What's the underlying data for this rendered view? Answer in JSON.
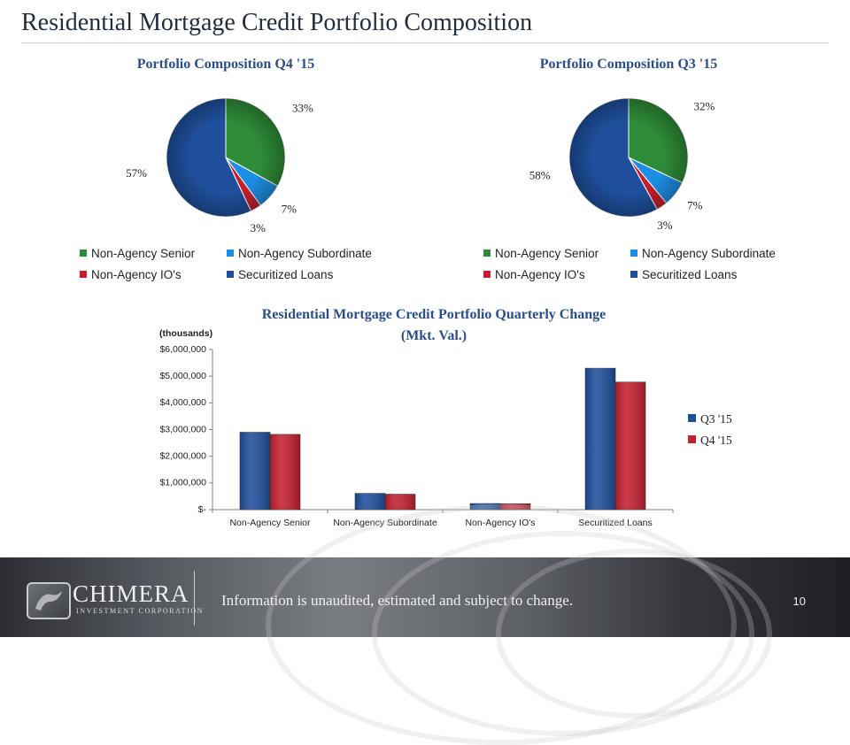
{
  "page": {
    "title": "Residential Mortgage Credit Portfolio Composition",
    "footer_text": "Information is unaudited, estimated and subject to change.",
    "page_number": "10",
    "logo_name": "CHIMERA",
    "logo_subtitle": "INVESTMENT CORPORATION"
  },
  "colors": {
    "Non-Agency Senior": "#2e8b38",
    "Non-Agency Subordinate": "#1c8ee3",
    "Non-Agency IO's": "#c4202e",
    "Securitized  Loans": "#1f4f9c",
    "Q3 '15": "#1f4f9c",
    "Q4 '15": "#c4202e"
  },
  "chart_data": [
    {
      "type": "pie",
      "title": "Portfolio Composition Q4 '15",
      "labels": [
        "Non-Agency Senior",
        "Non-Agency Subordinate",
        "Non-Agency IO's",
        "Securitized  Loans"
      ],
      "values": [
        33,
        7,
        3,
        57
      ],
      "value_labels": [
        "33%",
        "7%",
        "3%",
        "57%"
      ],
      "legend": "bottom"
    },
    {
      "type": "pie",
      "title": "Portfolio Composition Q3 '15",
      "labels": [
        "Non-Agency Senior",
        "Non-Agency Subordinate",
        "Non-Agency IO's",
        "Securitized  Loans"
      ],
      "values": [
        32,
        7,
        3,
        58
      ],
      "value_labels": [
        "32%",
        "7%",
        "3%",
        "58%"
      ],
      "legend": "bottom"
    },
    {
      "type": "bar",
      "title_lines": [
        "Residential Mortgage Credit Portfolio Quarterly Change",
        "(Mkt. Val.)"
      ],
      "ylabel": "(thousands)",
      "categories": [
        "Non-Agency Senior",
        "Non-Agency Subordinate",
        "Non-Agency IO's",
        "Securitized  Loans"
      ],
      "series": [
        {
          "name": "Q3 '15",
          "values": [
            2900000,
            610000,
            230000,
            5300000
          ]
        },
        {
          "name": "Q4 '15",
          "values": [
            2820000,
            580000,
            220000,
            4780000
          ]
        }
      ],
      "ylim": [
        0,
        6000000
      ],
      "yticks": [
        0,
        1000000,
        2000000,
        3000000,
        4000000,
        5000000,
        6000000
      ],
      "ytick_labels": [
        "$-",
        "$1,000,000",
        "$2,000,000",
        "$3,000,000",
        "$4,000,000",
        "$5,000,000",
        "$6,000,000"
      ],
      "legend": "right"
    }
  ]
}
